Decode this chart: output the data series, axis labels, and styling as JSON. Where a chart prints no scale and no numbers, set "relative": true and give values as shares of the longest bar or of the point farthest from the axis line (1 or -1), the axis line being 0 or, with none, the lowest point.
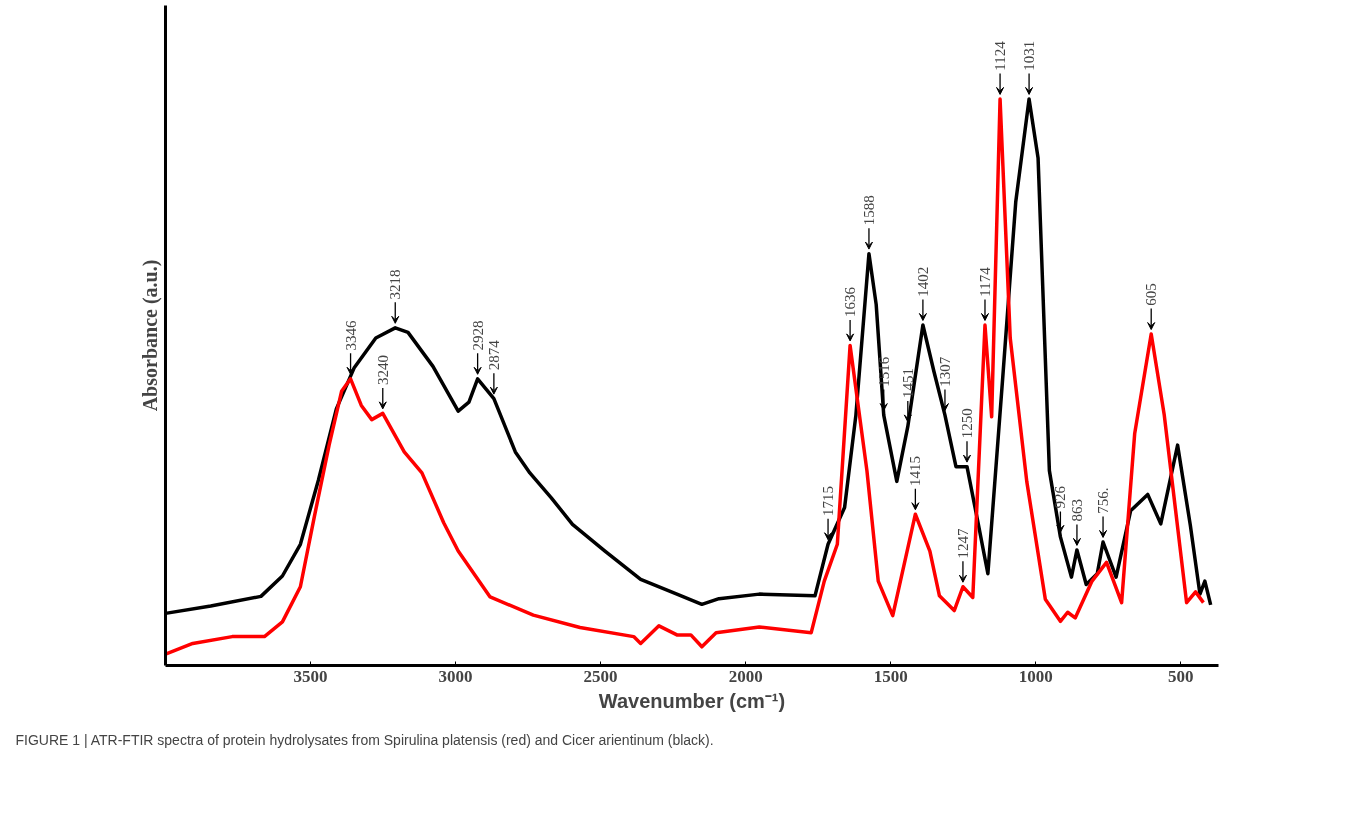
{
  "chart_data": {
    "type": "line",
    "relative": true,
    "xlabel": "Wavenumber (cm⁻¹)",
    "ylabel": "Absorbance (a.u.)",
    "xlim": [
      4000,
      370
    ],
    "xticks": [
      3500,
      3000,
      2500,
      2000,
      1500,
      1000,
      500
    ],
    "grid": false,
    "marker": "none",
    "line_style": "solid",
    "series": [
      {
        "color": "#000000",
        "x": [
          4000,
          3844,
          3671,
          3597,
          3535,
          3473,
          3411,
          3350,
          3275,
          3208,
          3164,
          3078,
          2991,
          2954,
          2924,
          2868,
          2794,
          2744,
          2670,
          2597,
          2485,
          2362,
          2237,
          2151,
          2092,
          1953,
          1761,
          1716,
          1659,
          1620,
          1575,
          1550,
          1524,
          1479,
          1441,
          1389,
          1351,
          1313,
          1275,
          1237,
          1197,
          1165,
          1114,
          1069,
          1023,
          992,
          953,
          915,
          877,
          858,
          826,
          788,
          768,
          723,
          673,
          614,
          569,
          511,
          467,
          434,
          417,
          397
        ],
        "values": [
          0.092,
          0.105,
          0.122,
          0.158,
          0.214,
          0.327,
          0.453,
          0.525,
          0.578,
          0.596,
          0.588,
          0.528,
          0.449,
          0.465,
          0.506,
          0.471,
          0.377,
          0.34,
          0.296,
          0.249,
          0.202,
          0.152,
          0.126,
          0.108,
          0.118,
          0.126,
          0.123,
          0.214,
          0.279,
          0.442,
          0.727,
          0.637,
          0.442,
          0.325,
          0.422,
          0.601,
          0.519,
          0.442,
          0.351,
          0.351,
          0.247,
          0.162,
          0.507,
          0.818,
          1.0,
          0.896,
          0.344,
          0.227,
          0.156,
          0.204,
          0.143,
          0.162,
          0.218,
          0.156,
          0.273,
          0.302,
          0.25,
          0.389,
          0.247,
          0.126,
          0.149,
          0.107
        ]
      },
      {
        "color": "#ff0000",
        "x": [
          4000,
          3906,
          3770,
          3659,
          3597,
          3535,
          3486,
          3436,
          3393,
          3362,
          3325,
          3289,
          3251,
          3177,
          3116,
          3041,
          2991,
          2881,
          2732,
          2571,
          2386,
          2362,
          2299,
          2237,
          2189,
          2151,
          2102,
          1953,
          1774,
          1729,
          1684,
          1640,
          1582,
          1543,
          1493,
          1415,
          1365,
          1332,
          1281,
          1251,
          1217,
          1175,
          1152,
          1123,
          1088,
          1031,
          967,
          915,
          890,
          864,
          806,
          756,
          704,
          659,
          602,
          557,
          480,
          449,
          422
        ],
        "values": [
          0.02,
          0.039,
          0.051,
          0.051,
          0.077,
          0.139,
          0.265,
          0.389,
          0.484,
          0.506,
          0.459,
          0.434,
          0.445,
          0.377,
          0.34,
          0.252,
          0.202,
          0.121,
          0.089,
          0.067,
          0.051,
          0.039,
          0.07,
          0.054,
          0.054,
          0.033,
          0.058,
          0.068,
          0.058,
          0.149,
          0.214,
          0.565,
          0.344,
          0.149,
          0.088,
          0.267,
          0.202,
          0.123,
          0.097,
          0.139,
          0.12,
          0.601,
          0.439,
          1.0,
          0.578,
          0.325,
          0.117,
          0.078,
          0.094,
          0.084,
          0.149,
          0.182,
          0.111,
          0.409,
          0.585,
          0.442,
          0.111,
          0.13,
          0.111
        ]
      }
    ],
    "annotations": [
      {
        "text": "3218",
        "x": 3208,
        "y": 0.596
      },
      {
        "text": "3346",
        "x": 3362,
        "y": 0.506
      },
      {
        "text": "3240",
        "x": 3251,
        "y": 0.445
      },
      {
        "text": "2928",
        "x": 2924,
        "y": 0.506
      },
      {
        "text": "2874",
        "x": 2868,
        "y": 0.471
      },
      {
        "text": "1715",
        "x": 1716,
        "y": 0.214
      },
      {
        "text": "1636",
        "x": 1640,
        "y": 0.565
      },
      {
        "text": "1588",
        "x": 1575,
        "y": 0.727
      },
      {
        "text": "1516",
        "x": 1524,
        "y": 0.442
      },
      {
        "text": "1451",
        "x": 1441,
        "y": 0.422
      },
      {
        "text": "1402",
        "x": 1389,
        "y": 0.601
      },
      {
        "text": "1415",
        "x": 1415,
        "y": 0.267
      },
      {
        "text": "1307",
        "x": 1313,
        "y": 0.442
      },
      {
        "text": "1250",
        "x": 1237,
        "y": 0.351
      },
      {
        "text": "1247",
        "x": 1251,
        "y": 0.139
      },
      {
        "text": "1174",
        "x": 1175,
        "y": 0.601
      },
      {
        "text": "1124",
        "x": 1123,
        "y": 1.0
      },
      {
        "text": "1031",
        "x": 1023,
        "y": 1.0
      },
      {
        "text": "926",
        "x": 915,
        "y": 0.227
      },
      {
        "text": "863",
        "x": 858,
        "y": 0.204
      },
      {
        "text": "756.",
        "x": 768,
        "y": 0.218
      },
      {
        "text": "605",
        "x": 602,
        "y": 0.585
      },
      "FIGURE 1 | ATR-FTIR spectra of protein hydrolysates from Spirulina platensis (red) and Cicer arientinum (black)."
    ]
  }
}
